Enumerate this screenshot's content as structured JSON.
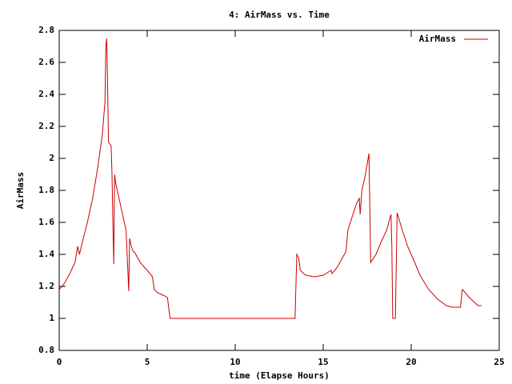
{
  "chart_data": {
    "type": "line",
    "title": "4: AirMass vs. Time",
    "x_label": "time (Elapse Hours)",
    "y_label": "AirMass",
    "xlim": [
      0,
      25
    ],
    "xticks": [
      0,
      5,
      10,
      15,
      20,
      25
    ],
    "ylim": [
      0.8,
      2.8
    ],
    "yticks": [
      0.8,
      1,
      1.2,
      1.4,
      1.6,
      1.8,
      2,
      2.2,
      2.4,
      2.6,
      2.8
    ],
    "legend": "top-right",
    "x": [
      0,
      0.3,
      0.6,
      0.9,
      1.05,
      1.15,
      1.3,
      1.6,
      1.9,
      2.2,
      2.45,
      2.6,
      2.65,
      2.7,
      2.75,
      2.8,
      2.95,
      3.0,
      3.05,
      3.1,
      3.15,
      3.2,
      3.5,
      3.8,
      3.9,
      3.95,
      4.0,
      4.1,
      4.2,
      4.3,
      4.6,
      5.0,
      5.3,
      5.4,
      5.6,
      6.0,
      6.15,
      6.3,
      13.4,
      13.5,
      13.6,
      13.7,
      14.0,
      14.5,
      15.0,
      15.3,
      15.45,
      15.5,
      15.8,
      16.0,
      16.3,
      16.4,
      16.6,
      16.9,
      17.05,
      17.1,
      17.2,
      17.4,
      17.6,
      17.7,
      18.0,
      18.3,
      18.6,
      18.8,
      18.85,
      18.9,
      18.95,
      19.1,
      19.2,
      19.5,
      19.8,
      20.2,
      20.5,
      21.0,
      21.5,
      22.0,
      22.3,
      22.8,
      22.9,
      23.0,
      23.3,
      23.8,
      24.0
    ],
    "series": [
      {
        "name": "AirMass",
        "color": "#cc0000",
        "values": [
          1.18,
          1.22,
          1.28,
          1.35,
          1.45,
          1.4,
          1.47,
          1.6,
          1.75,
          1.95,
          2.15,
          2.35,
          2.7,
          2.75,
          2.45,
          2.1,
          2.08,
          1.9,
          1.6,
          1.34,
          1.9,
          1.85,
          1.7,
          1.55,
          1.3,
          1.17,
          1.5,
          1.45,
          1.42,
          1.41,
          1.35,
          1.3,
          1.26,
          1.18,
          1.16,
          1.14,
          1.13,
          1.0,
          1.0,
          1.4,
          1.38,
          1.3,
          1.27,
          1.26,
          1.27,
          1.29,
          1.3,
          1.28,
          1.32,
          1.36,
          1.42,
          1.55,
          1.62,
          1.72,
          1.75,
          1.65,
          1.8,
          1.9,
          2.03,
          1.35,
          1.4,
          1.48,
          1.55,
          1.63,
          1.65,
          1.45,
          1.0,
          1.0,
          1.66,
          1.55,
          1.45,
          1.35,
          1.27,
          1.18,
          1.12,
          1.08,
          1.07,
          1.07,
          1.18,
          1.17,
          1.13,
          1.08,
          1.08
        ]
      }
    ]
  }
}
